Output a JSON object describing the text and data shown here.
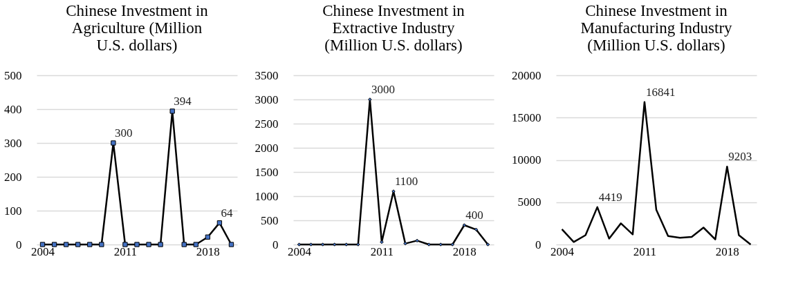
{
  "chart_data": [
    {
      "type": "line",
      "title": "Chinese Investment in Agriculture (Million U.S. dollars)",
      "categories": [
        "2004",
        null,
        null,
        null,
        null,
        null,
        null,
        "2011",
        null,
        null,
        null,
        null,
        null,
        null,
        "2018",
        null,
        null
      ],
      "series": [
        {
          "color": "#000000",
          "values": [
            0,
            0,
            0,
            0,
            0,
            0,
            300,
            0,
            0,
            0,
            0,
            394,
            0,
            0,
            22,
            64,
            0
          ],
          "value_labels": [
            null,
            null,
            null,
            null,
            null,
            null,
            "300",
            null,
            null,
            null,
            null,
            "394",
            null,
            null,
            null,
            "64",
            null
          ]
        }
      ],
      "ylim": [
        0,
        500
      ],
      "yticks": [
        0,
        100,
        200,
        300,
        400,
        500
      ],
      "grid": "y",
      "marker": "square",
      "line_style": "solid"
    },
    {
      "type": "line",
      "title": "Chinese Investment in Extractive Industry (Million U.S. dollars)",
      "categories": [
        "2004",
        null,
        null,
        null,
        null,
        null,
        null,
        "2011",
        null,
        null,
        null,
        null,
        null,
        null,
        "2018",
        null,
        null
      ],
      "series": [
        {
          "color": "#000000",
          "values": [
            0,
            0,
            0,
            0,
            0,
            0,
            3000,
            50,
            1100,
            20,
            80,
            0,
            0,
            0,
            400,
            310,
            0
          ],
          "value_labels": [
            null,
            null,
            null,
            null,
            null,
            null,
            "3000",
            null,
            "1100",
            null,
            null,
            null,
            null,
            null,
            "400",
            null,
            null
          ]
        }
      ],
      "ylim": [
        0,
        3500
      ],
      "yticks": [
        0,
        500,
        1000,
        1500,
        2000,
        2500,
        3000,
        3500
      ],
      "grid": "y",
      "marker": "diamond",
      "line_style": "solid"
    },
    {
      "type": "line",
      "title": "Chinese Investment in Manufacturing Industry (Million U.S. dollars)",
      "categories": [
        "2004",
        null,
        null,
        null,
        null,
        null,
        null,
        "2011",
        null,
        null,
        null,
        null,
        null,
        null,
        "2018",
        null,
        null
      ],
      "series": [
        {
          "color": "#000000",
          "values": [
            1800,
            300,
            1100,
            4419,
            700,
            2500,
            1200,
            16841,
            4100,
            1000,
            800,
            900,
            2000,
            600,
            9203,
            1100,
            0
          ],
          "value_labels": [
            null,
            null,
            null,
            "4419",
            null,
            null,
            null,
            "16841",
            null,
            null,
            null,
            null,
            null,
            null,
            "9203",
            null,
            null
          ]
        }
      ],
      "ylim": [
        0,
        20000
      ],
      "yticks": [
        0,
        5000,
        10000,
        15000,
        20000
      ],
      "grid": "y",
      "line_style": "solid"
    }
  ]
}
